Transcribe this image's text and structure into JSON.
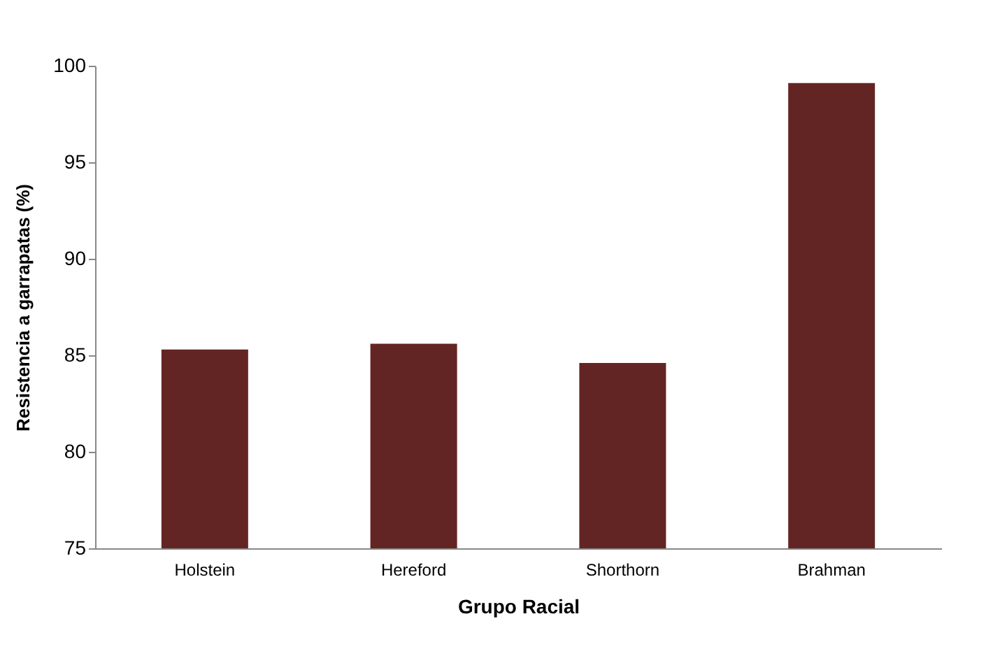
{
  "chart_data": {
    "type": "bar",
    "xlabel": "Grupo Racial",
    "ylabel": "Resistencia a garrapatas  (%)",
    "categories": [
      "Holstein",
      "Hereford",
      "Shorthorn",
      "Brahman"
    ],
    "series": [
      {
        "color": "#632523",
        "values": [
          85.3,
          85.6,
          84.6,
          99.1
        ]
      }
    ],
    "ylim": [
      75,
      100
    ],
    "yticks": [
      75,
      80,
      85,
      90,
      95,
      100
    ],
    "grid": false
  }
}
